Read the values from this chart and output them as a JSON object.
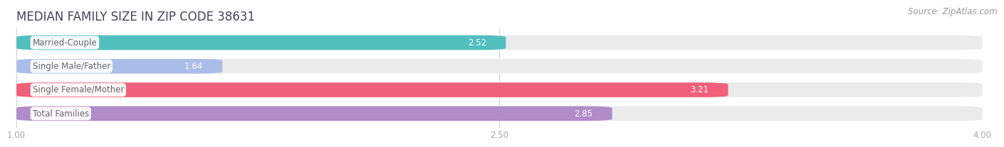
{
  "title": "MEDIAN FAMILY SIZE IN ZIP CODE 38631",
  "source": "Source: ZipAtlas.com",
  "categories": [
    "Married-Couple",
    "Single Male/Father",
    "Single Female/Mother",
    "Total Families"
  ],
  "values": [
    2.52,
    1.64,
    3.21,
    2.85
  ],
  "bar_colors": [
    "#52BFBF",
    "#AABDE8",
    "#F0607A",
    "#B08CC8"
  ],
  "bar_bg_color": "#EBEBEB",
  "xlim": [
    1.0,
    4.0
  ],
  "xticks": [
    1.0,
    2.5,
    4.0
  ],
  "xtick_labels": [
    "1.00",
    "2.50",
    "4.00"
  ],
  "background_color": "#FFFFFF",
  "title_fontsize": 12,
  "label_fontsize": 8.5,
  "value_fontsize": 8.5,
  "source_fontsize": 8.5,
  "bar_height": 0.62,
  "bar_gap": 0.18
}
